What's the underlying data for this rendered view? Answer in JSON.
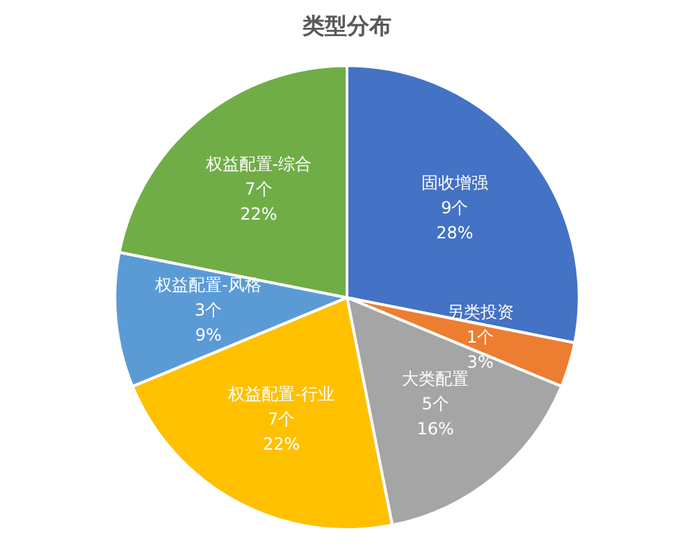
{
  "chart_data": {
    "type": "pie",
    "title": "类型分布",
    "categories": [
      "固收增强",
      "另类投资",
      "大类配置",
      "权益配置-行业",
      "权益配置-风格",
      "权益配置-综合"
    ],
    "values": [
      9,
      1,
      5,
      7,
      3,
      7
    ],
    "colors": [
      "#4472c4",
      "#ed7d31",
      "#a5a5a5",
      "#ffc000",
      "#5b9bd5",
      "#70ad47"
    ],
    "value_labels": [
      "9个\n28%",
      "1个\n3%",
      "5个\n16%",
      "7个\n22%",
      "3个\n9%",
      "7个\n22%"
    ]
  }
}
